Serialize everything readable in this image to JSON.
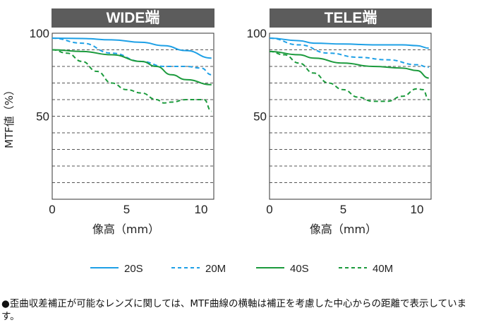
{
  "chart_data": [
    {
      "type": "line",
      "title": "WIDE端",
      "xlabel": "像高（mm）",
      "ylabel": "MTF値（%）",
      "xlim": [
        0,
        10.8
      ],
      "ylim": [
        0,
        100
      ],
      "xticks": [
        "0",
        "5",
        "10"
      ],
      "yticks": [
        "100",
        "50"
      ],
      "grid": "horizontal dashed every 10",
      "series": [
        {
          "name": "20S",
          "style": "solid",
          "color": "#1ea0e6",
          "x": [
            0,
            2,
            4,
            6,
            7.5,
            9,
            10.7
          ],
          "y": [
            97,
            96.8,
            96,
            94.5,
            92.5,
            89.5,
            85
          ]
        },
        {
          "name": "20M",
          "style": "dashed",
          "color": "#1ea0e6",
          "x": [
            0,
            2,
            4,
            6,
            7.5,
            9,
            10,
            10.7
          ],
          "y": [
            97,
            94,
            88,
            83,
            80,
            80,
            79,
            75
          ]
        },
        {
          "name": "40S",
          "style": "solid",
          "color": "#1b9a3c",
          "x": [
            0,
            2,
            4,
            6,
            7,
            8,
            9,
            10.7
          ],
          "y": [
            90,
            89,
            87,
            83,
            80,
            75,
            72,
            69
          ]
        },
        {
          "name": "40M",
          "style": "dashed",
          "color": "#1b9a3c",
          "x": [
            0,
            1,
            2,
            3,
            4,
            5,
            6,
            7,
            7.5,
            8,
            9,
            10.2,
            10.7
          ],
          "y": [
            90,
            88,
            83,
            77,
            70,
            66,
            64,
            60,
            58,
            58.5,
            60,
            60,
            53
          ]
        }
      ]
    },
    {
      "type": "line",
      "title": "TELE端",
      "xlabel": "像高（mm）",
      "ylabel": "",
      "xlim": [
        0,
        10.9
      ],
      "ylim": [
        0,
        100
      ],
      "xticks": [
        "0",
        "5",
        "10"
      ],
      "yticks": [
        "100",
        "50"
      ],
      "grid": "horizontal dashed every 10",
      "series": [
        {
          "name": "20S",
          "style": "solid",
          "color": "#1ea0e6",
          "x": [
            0,
            2,
            3,
            5,
            7,
            9,
            10,
            10.8
          ],
          "y": [
            97,
            95.5,
            94,
            93.5,
            93,
            93,
            92.5,
            91
          ]
        },
        {
          "name": "20M",
          "style": "dashed",
          "color": "#1ea0e6",
          "x": [
            0,
            2,
            4,
            6,
            8,
            10,
            10.8
          ],
          "y": [
            97,
            93,
            88,
            85.5,
            84,
            81,
            79.5
          ]
        },
        {
          "name": "40S",
          "style": "solid",
          "color": "#1b9a3c",
          "x": [
            0,
            2,
            3,
            5,
            7,
            9,
            10,
            10.8
          ],
          "y": [
            89,
            87,
            85,
            82,
            80,
            79,
            77.5,
            73
          ]
        },
        {
          "name": "40M",
          "style": "dashed",
          "color": "#1b9a3c",
          "x": [
            0,
            1,
            2,
            3,
            4,
            5,
            6,
            7,
            8,
            9,
            10,
            10.4,
            10.8
          ],
          "y": [
            89,
            87,
            82,
            76,
            70,
            66,
            61.5,
            59,
            59,
            62,
            66.5,
            66,
            60
          ]
        }
      ]
    }
  ],
  "legend": [
    "20S",
    "20M",
    "40S",
    "40M"
  ],
  "note": "●歪曲収差補正が可能なレンズに関しては、MTF曲線の横軸は補正を考慮した中心からの距離で表示しています。"
}
